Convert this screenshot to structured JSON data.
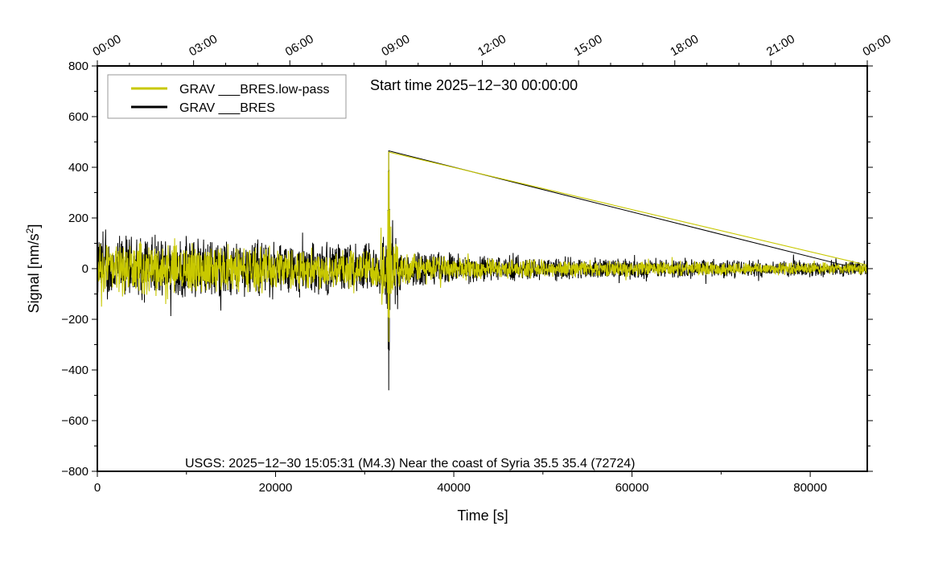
{
  "chart_data": {
    "type": "line",
    "title": "Start time 2025−12−30 00:00:00",
    "xlabel": "Time [s]",
    "ylabel": "Signal [nm/s²]",
    "ylabel_main": "Signal [nm/s",
    "ylabel_sup": "2",
    "ylabel_end": "]",
    "xlim": [
      0,
      86400
    ],
    "ylim": [
      -800,
      800
    ],
    "x_ticks": [
      0,
      20000,
      40000,
      60000,
      80000
    ],
    "x_tick_labels": [
      "0",
      "20000",
      "40000",
      "60000",
      "80000"
    ],
    "y_ticks": [
      -800,
      -600,
      -400,
      -200,
      0,
      200,
      400,
      600,
      800
    ],
    "y_tick_labels": [
      "−800",
      "−600",
      "−400",
      "−200",
      "0",
      "200",
      "400",
      "600",
      "800"
    ],
    "top_ticks_seconds": [
      0,
      10800,
      21600,
      32400,
      43200,
      54000,
      64800,
      75600,
      86400
    ],
    "top_tick_labels": [
      "00:00",
      "03:00",
      "06:00",
      "09:00",
      "12:00",
      "15:00",
      "18:00",
      "21:00",
      "00:00"
    ],
    "grid": false,
    "legend_position": "top-left",
    "annotation": "USGS: 2025−12−30 15:05:31 (M4.3) Near the coast of Syria 35.5 35.4 (72724)",
    "series": [
      {
        "name": "GRAV ___BRES",
        "color": "#000000",
        "envelope_time_s": [
          0,
          10000,
          20000,
          30000,
          32700,
          36000,
          45000,
          60000,
          86400
        ],
        "envelope_amplitude": [
          110,
          100,
          90,
          80,
          80,
          60,
          40,
          32,
          25
        ],
        "spike": {
          "time_s": 32700,
          "max": 465,
          "min": -480
        }
      },
      {
        "name": "GRAV ___BRES.low-pass",
        "color": "#c8c800",
        "envelope_time_s": [
          0,
          10000,
          20000,
          30000,
          32700,
          36000,
          45000,
          60000,
          86400
        ],
        "envelope_amplitude": [
          85,
          78,
          70,
          62,
          62,
          45,
          30,
          24,
          18
        ],
        "spike": {
          "time_s": 32700,
          "max": 460,
          "min": -290
        }
      }
    ]
  }
}
